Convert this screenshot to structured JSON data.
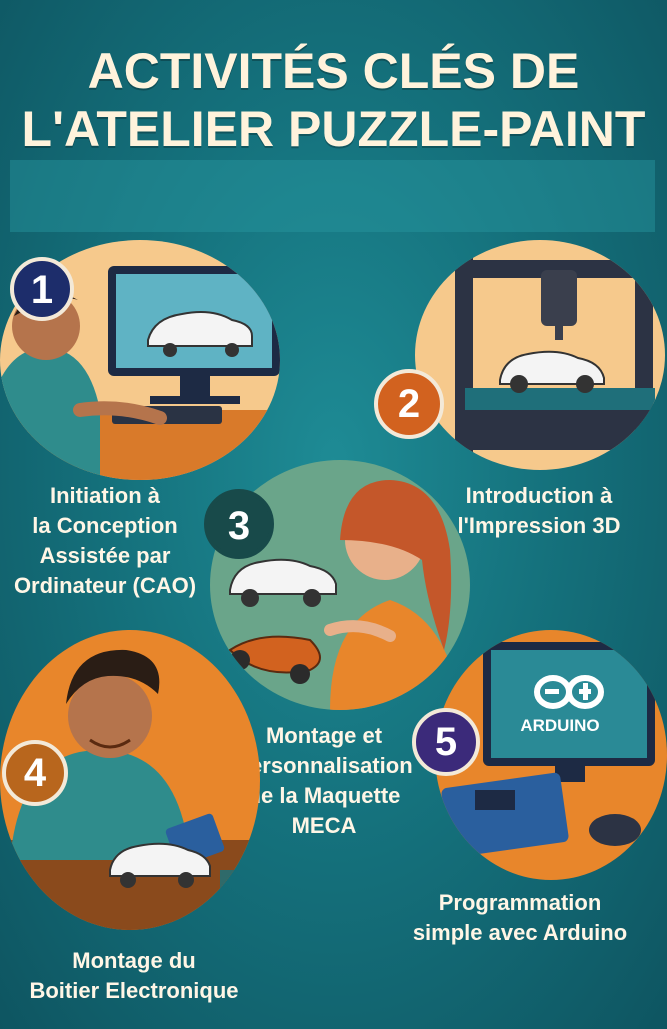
{
  "title": {
    "line1": "ACTIVITÉS CLÉS DE",
    "line2": "L'ATELIER PUZZLE-PAINT"
  },
  "activities": [
    {
      "number": "1",
      "lines": [
        "Initiation à",
        "la Conception",
        "Assistée par",
        "Ordinateur (CAO)"
      ]
    },
    {
      "number": "2",
      "lines": [
        "Introduction à",
        "l'Impression 3D"
      ]
    },
    {
      "number": "3",
      "lines": [
        "Montage et",
        "Personnalisation",
        "de la Maquette",
        "MECA"
      ]
    },
    {
      "number": "4",
      "lines": [
        "Montage du",
        "Boitier Electronique"
      ]
    },
    {
      "number": "5",
      "lines": [
        "Programmation",
        "simple avec Arduino"
      ],
      "screen_label": "ARDUINO"
    }
  ],
  "colors": {
    "background": "#15727d",
    "title": "#fff3dc",
    "badge1": "#1d2d6b",
    "badge2": "#d2621f",
    "badge3": "#184a4a",
    "badge4": "#b8661d",
    "badge5": "#3b2a7a",
    "circle_peach": "#f6c98c",
    "circle_orange": "#e8862b",
    "circle_green": "#6aa58a"
  }
}
